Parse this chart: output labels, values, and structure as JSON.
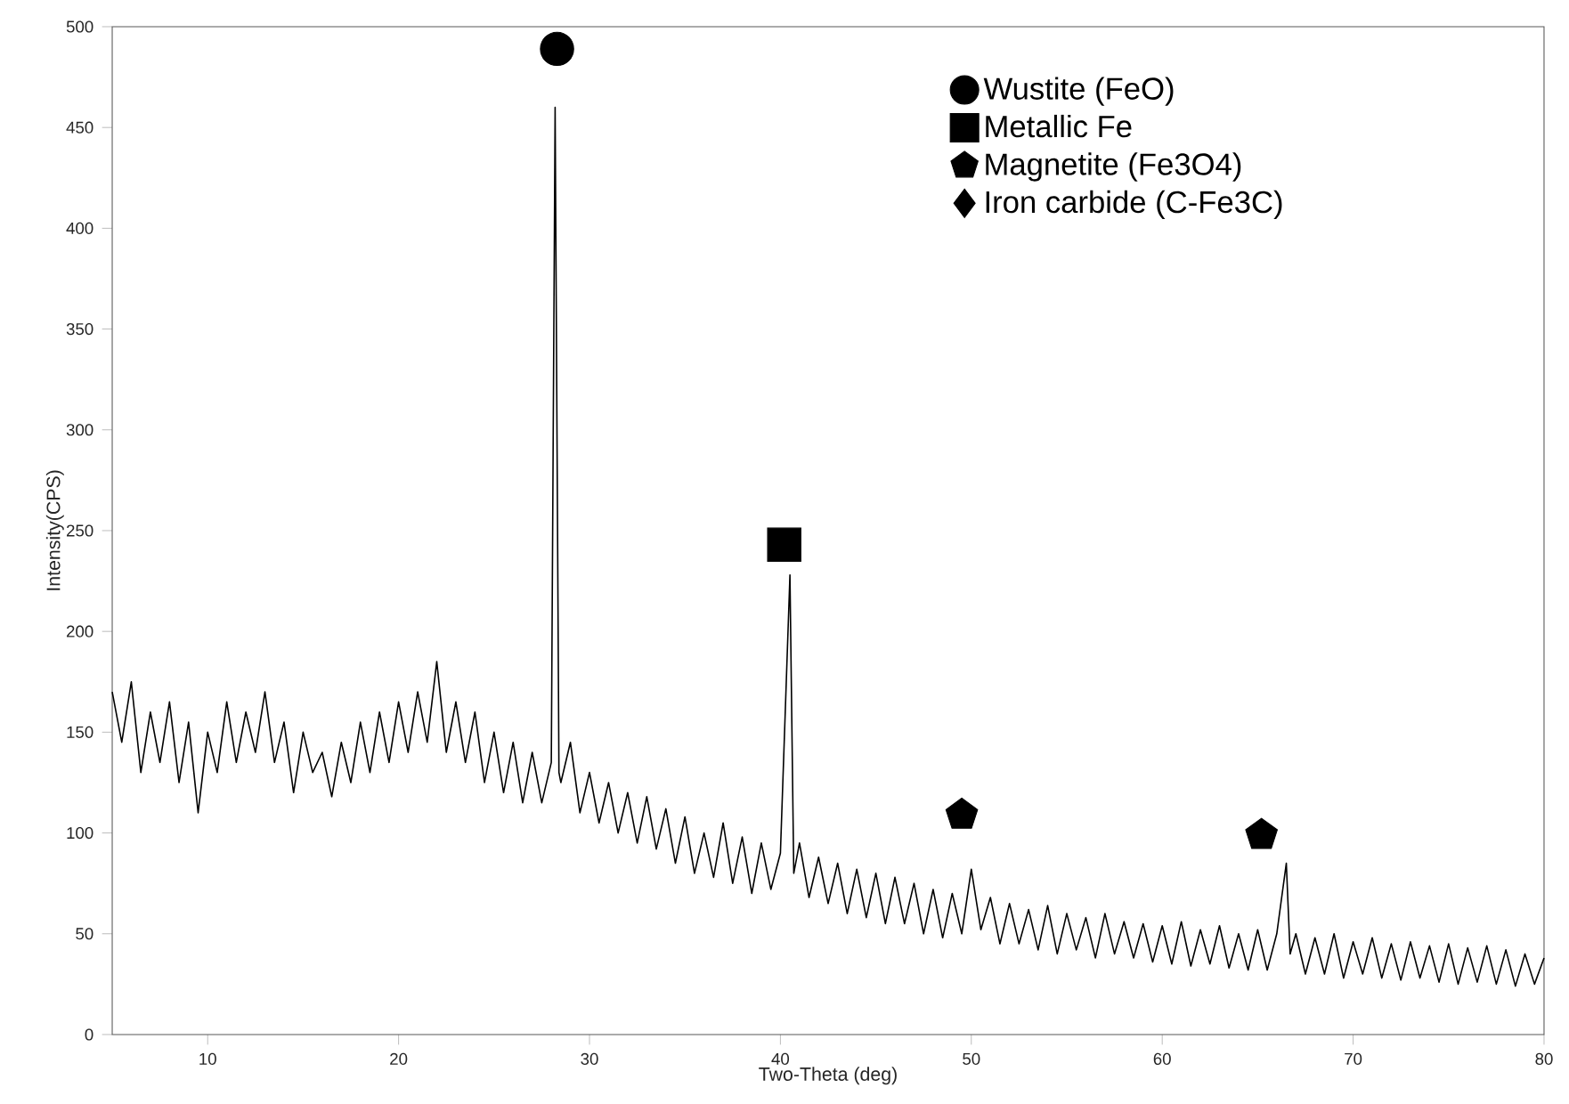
{
  "chart_data": {
    "type": "line",
    "xlabel": "Two-Theta (deg)",
    "ylabel": "Intensity(CPS)",
    "xlim": [
      5,
      80
    ],
    "xticks": [
      10,
      20,
      30,
      40,
      50,
      60,
      70,
      80
    ],
    "ylim": [
      0,
      500
    ],
    "yticks": [
      0,
      50,
      100,
      150,
      200,
      250,
      300,
      350,
      400,
      450,
      500
    ],
    "legend": "top right",
    "grid": false,
    "series": [
      {
        "color": "#000000",
        "marker": "none",
        "x": [
          5,
          5.5,
          6,
          6.5,
          7,
          7.5,
          8,
          8.5,
          9,
          9.5,
          10,
          10.5,
          11,
          11.5,
          12,
          12.5,
          13,
          13.5,
          14,
          14.5,
          15,
          15.5,
          16,
          16.5,
          17,
          17.5,
          18,
          18.5,
          19,
          19.5,
          20,
          20.5,
          21,
          21.5,
          22,
          22.5,
          23,
          23.5,
          24,
          24.5,
          25,
          25.5,
          26,
          26.5,
          27,
          27.5,
          28,
          28.2,
          28.4,
          28.5,
          29,
          29.5,
          30,
          30.5,
          31,
          31.5,
          32,
          32.5,
          33,
          33.5,
          34,
          34.5,
          35,
          35.5,
          36,
          36.5,
          37,
          37.5,
          38,
          38.5,
          39,
          39.5,
          40,
          40.5,
          40.7,
          41,
          41.5,
          42,
          42.5,
          43,
          43.5,
          44,
          44.5,
          45,
          45.5,
          46,
          46.5,
          47,
          47.5,
          48,
          48.5,
          49,
          49.5,
          50,
          50.5,
          51,
          51.5,
          52,
          52.5,
          53,
          53.5,
          54,
          54.5,
          55,
          55.5,
          56,
          56.5,
          57,
          57.5,
          58,
          58.5,
          59,
          59.5,
          60,
          60.5,
          61,
          61.5,
          62,
          62.5,
          63,
          63.5,
          64,
          64.5,
          65,
          65.5,
          66,
          66.5,
          66.7,
          67,
          67.5,
          68,
          68.5,
          69,
          69.5,
          70,
          70.5,
          71,
          71.5,
          72,
          72.5,
          73,
          73.5,
          74,
          74.5,
          75,
          75.5,
          76,
          76.5,
          77,
          77.5,
          78,
          78.5,
          79,
          79.5,
          80
        ],
        "values": [
          170,
          145,
          175,
          130,
          160,
          135,
          165,
          125,
          155,
          110,
          150,
          130,
          165,
          135,
          160,
          140,
          170,
          135,
          155,
          120,
          150,
          130,
          140,
          118,
          145,
          125,
          155,
          130,
          160,
          135,
          165,
          140,
          170,
          145,
          185,
          140,
          165,
          135,
          160,
          125,
          150,
          120,
          145,
          115,
          140,
          115,
          135,
          460,
          130,
          125,
          145,
          110,
          130,
          105,
          125,
          100,
          120,
          95,
          118,
          92,
          112,
          85,
          108,
          80,
          100,
          78,
          105,
          75,
          98,
          70,
          95,
          72,
          90,
          228,
          80,
          95,
          68,
          88,
          65,
          85,
          60,
          82,
          58,
          80,
          55,
          78,
          55,
          75,
          50,
          72,
          48,
          70,
          50,
          82,
          52,
          68,
          45,
          65,
          45,
          62,
          42,
          64,
          40,
          60,
          42,
          58,
          38,
          60,
          40,
          56,
          38,
          55,
          36,
          54,
          35,
          56,
          34,
          52,
          35,
          54,
          33,
          50,
          32,
          52,
          32,
          50,
          85,
          40,
          50,
          30,
          48,
          30,
          50,
          28,
          46,
          30,
          48,
          28,
          45,
          27,
          46,
          28,
          44,
          26,
          45,
          25,
          43,
          26,
          44,
          25,
          42,
          24,
          40,
          25,
          38
        ]
      },
      {
        "type": "scatter",
        "name": "Wustite (FeO)",
        "color": "#000000",
        "marker": "circle",
        "x": [
          28.3
        ],
        "values": [
          489
        ]
      },
      {
        "type": "scatter",
        "name": "Metallic Fe",
        "color": "#000000",
        "marker": "square",
        "x": [
          40.2
        ],
        "values": [
          243
        ]
      },
      {
        "type": "scatter",
        "name": "Magnetite (Fe3O4)",
        "color": "#000000",
        "marker": "star",
        "x": [
          49.5,
          65.2
        ],
        "values": [
          109,
          99
        ]
      },
      {
        "type": "scatter",
        "name": "Iron carbide (C-Fe3C)",
        "color": "#000000",
        "marker": "diamond"
      }
    ]
  }
}
